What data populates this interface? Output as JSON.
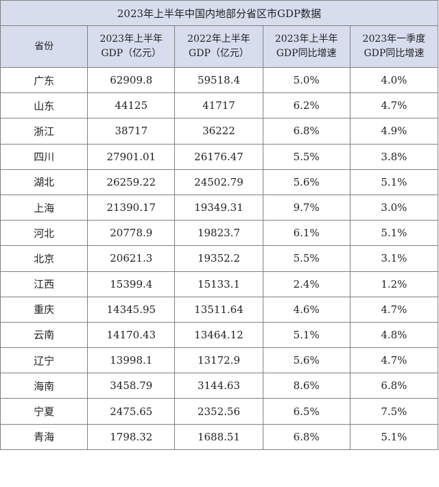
{
  "title": "2023年上半年中国内地部分省区市GDP数据",
  "headers": [
    {
      "line1": "省份",
      "line2": ""
    },
    {
      "line1": "2023年上半年",
      "line2": "GDP（亿元）"
    },
    {
      "line1": "2022年上半年",
      "line2": "GDP（亿元）"
    },
    {
      "line1": "2023年上半年",
      "line2": "GDP同比增速"
    },
    {
      "line1": "2023年一季度",
      "line2": "GDP同比增速"
    }
  ],
  "rows": [
    {
      "province": "广东",
      "gdp_2023h1": "62909.8",
      "gdp_2022h1": "59518.4",
      "growth_2023h1": "5.0%",
      "growth_2023q1": "4.0%"
    },
    {
      "province": "山东",
      "gdp_2023h1": "44125",
      "gdp_2022h1": "41717",
      "growth_2023h1": "6.2%",
      "growth_2023q1": "4.7%"
    },
    {
      "province": "浙江",
      "gdp_2023h1": "38717",
      "gdp_2022h1": "36222",
      "growth_2023h1": "6.8%",
      "growth_2023q1": "4.9%"
    },
    {
      "province": "四川",
      "gdp_2023h1": "27901.01",
      "gdp_2022h1": "26176.47",
      "growth_2023h1": "5.5%",
      "growth_2023q1": "3.8%"
    },
    {
      "province": "湖北",
      "gdp_2023h1": "26259.22",
      "gdp_2022h1": "24502.79",
      "growth_2023h1": "5.6%",
      "growth_2023q1": "5.1%"
    },
    {
      "province": "上海",
      "gdp_2023h1": "21390.17",
      "gdp_2022h1": "19349.31",
      "growth_2023h1": "9.7%",
      "growth_2023q1": "3.0%"
    },
    {
      "province": "河北",
      "gdp_2023h1": "20778.9",
      "gdp_2022h1": "19823.7",
      "growth_2023h1": "6.1%",
      "growth_2023q1": "5.1%"
    },
    {
      "province": "北京",
      "gdp_2023h1": "20621.3",
      "gdp_2022h1": "19352.2",
      "growth_2023h1": "5.5%",
      "growth_2023q1": "3.1%"
    },
    {
      "province": "江西",
      "gdp_2023h1": "15399.4",
      "gdp_2022h1": "15133.1",
      "growth_2023h1": "2.4%",
      "growth_2023q1": "1.2%"
    },
    {
      "province": "重庆",
      "gdp_2023h1": "14345.95",
      "gdp_2022h1": "13511.64",
      "growth_2023h1": "4.6%",
      "growth_2023q1": "4.7%"
    },
    {
      "province": "云南",
      "gdp_2023h1": "14170.43",
      "gdp_2022h1": "13464.12",
      "growth_2023h1": "5.1%",
      "growth_2023q1": "4.8%"
    },
    {
      "province": "辽宁",
      "gdp_2023h1": "13998.1",
      "gdp_2022h1": "13172.9",
      "growth_2023h1": "5.6%",
      "growth_2023q1": "4.7%"
    },
    {
      "province": "海南",
      "gdp_2023h1": "3458.79",
      "gdp_2022h1": "3144.63",
      "growth_2023h1": "8.6%",
      "growth_2023q1": "6.8%"
    },
    {
      "province": "宁夏",
      "gdp_2023h1": "2475.65",
      "gdp_2022h1": "2352.56",
      "growth_2023h1": "6.5%",
      "growth_2023q1": "7.5%"
    },
    {
      "province": "青海",
      "gdp_2023h1": "1798.32",
      "gdp_2022h1": "1688.51",
      "growth_2023h1": "6.8%",
      "growth_2023q1": "5.1%"
    }
  ],
  "colors": {
    "header_bg": "#d7dded",
    "border": "#7f7f7f",
    "text": "#222222"
  }
}
